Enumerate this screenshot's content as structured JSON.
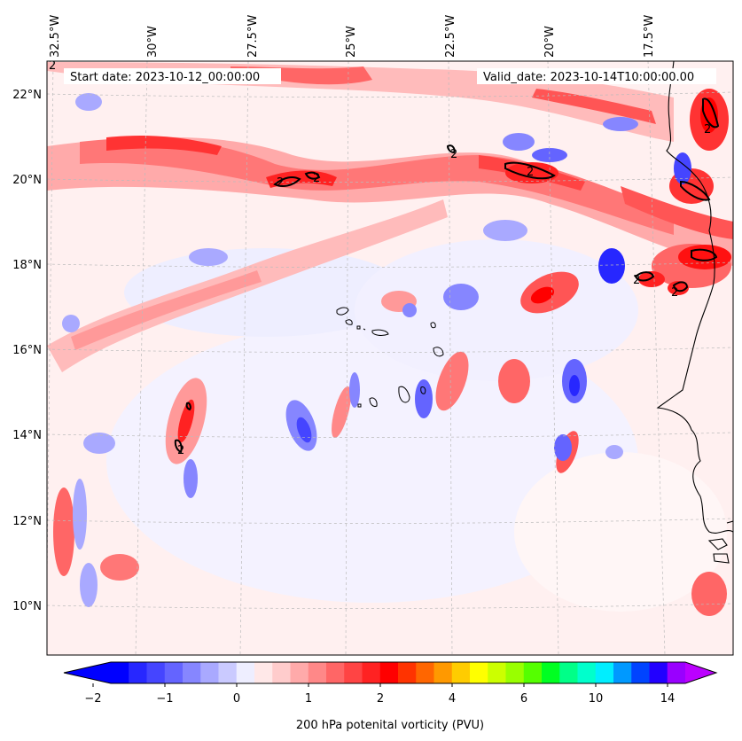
{
  "map": {
    "start_date_text": "Start date: 2023-10-12_00:00:00",
    "valid_date_text": "Valid_date: 2023-10-14T10:00:00.00",
    "longitude_labels": [
      "32.5°W",
      "30°W",
      "27.5°W",
      "25°W",
      "22.5°W",
      "20°W",
      "17.5°W"
    ],
    "latitude_labels": [
      "22°N",
      "20°N",
      "18°N",
      "16°N",
      "14°N",
      "12°N",
      "10°N"
    ],
    "contour_label": "2",
    "colorbar": {
      "label": "200 hPa potenital vorticity (PVU)",
      "tick_labels": [
        "−2",
        "−1",
        "0",
        "1",
        "2",
        "4",
        "6",
        "10",
        "14"
      ],
      "colors": [
        "#0000ff",
        "#2727ff",
        "#4545ff",
        "#6464ff",
        "#8686ff",
        "#a9a9ff",
        "#cacaff",
        "#eeeeff",
        "#ffe8e8",
        "#ffcccc",
        "#ffaaaa",
        "#ff8888",
        "#ff6666",
        "#ff4444",
        "#ff2222",
        "#ff0000",
        "#ff3300",
        "#ff6600",
        "#ff9900",
        "#ffcc00",
        "#ffff00",
        "#ccff00",
        "#99ff00",
        "#55ff00",
        "#00ff22",
        "#00ff88",
        "#00ffcc",
        "#00eeff",
        "#0099ff",
        "#0044ff",
        "#2200ff",
        "#9900ff"
      ],
      "under_color": "#0000ff",
      "over_color": "#bb00ff"
    }
  }
}
